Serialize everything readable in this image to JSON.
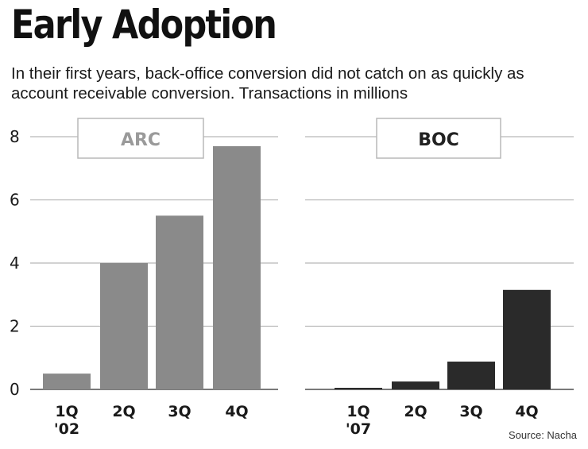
{
  "title": "Early Adoption",
  "subtitle": "In their first years, back-office conversion did not catch on as quickly as account receivable conversion. Transactions in millions",
  "source": "Source: Nacha",
  "colors": {
    "arc": "#8a8a8a",
    "boc": "#2a2a2a",
    "grid": "#b8b8b8",
    "axis": "#7a7a7a",
    "arc_label": "#9a9a9a",
    "boc_label": "#222222"
  },
  "chart_data": [
    {
      "type": "bar",
      "title": "ARC",
      "categories": [
        "1Q",
        "2Q",
        "3Q",
        "4Q"
      ],
      "category_sublabels": [
        "'02",
        "",
        "",
        ""
      ],
      "values": [
        0.5,
        4.0,
        5.5,
        7.7
      ],
      "ylim": [
        0,
        8
      ],
      "yticks": [
        0,
        2,
        4,
        6,
        8
      ],
      "xlabel": "",
      "ylabel": "",
      "grid": true
    },
    {
      "type": "bar",
      "title": "BOC",
      "categories": [
        "1Q",
        "2Q",
        "3Q",
        "4Q"
      ],
      "category_sublabels": [
        "'07",
        "",
        "",
        ""
      ],
      "values": [
        0.02,
        0.25,
        0.88,
        3.15
      ],
      "ylim": [
        0,
        8
      ],
      "yticks": [
        0,
        2,
        4,
        6,
        8
      ],
      "xlabel": "",
      "ylabel": "",
      "grid": true
    }
  ]
}
